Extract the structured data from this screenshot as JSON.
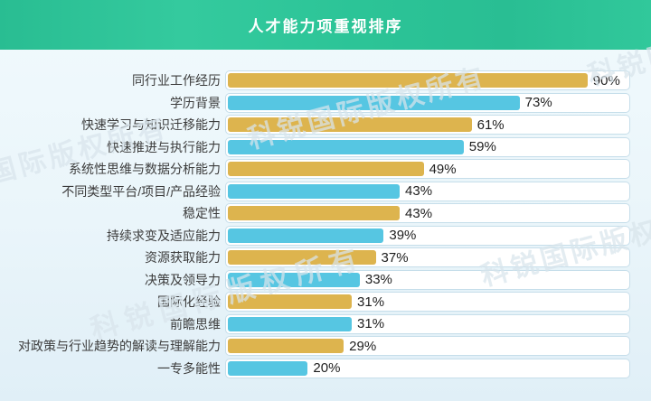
{
  "header": {
    "title": "人才能力项重视排序",
    "background_color": "#2BC59A",
    "title_color": "#FFFFFF"
  },
  "watermark": {
    "text": "科锐国际版权所有"
  },
  "chart_data": {
    "type": "bar",
    "orientation": "horizontal",
    "title": "人才能力项重视排序",
    "xlabel": "",
    "ylabel": "",
    "xlim": [
      0,
      100
    ],
    "grid": false,
    "legend": false,
    "value_suffix": "%",
    "categories": [
      "同行业工作经历",
      "学历背景",
      "快速学习与知识迁移能力",
      "快速推进与执行能力",
      "系统性思维与数据分析能力",
      "不同类型平台/项目/产品经验",
      "稳定性",
      "持续求变及适应能力",
      "资源获取能力",
      "决策及领导力",
      "国际化经验",
      "前瞻思维",
      "对政策与行业趋势的解读与理解能力",
      "一专多能性"
    ],
    "values": [
      90,
      73,
      61,
      59,
      49,
      43,
      43,
      39,
      37,
      33,
      31,
      31,
      29,
      20
    ],
    "bar_colors": [
      "gold",
      "blue",
      "gold",
      "blue",
      "gold",
      "blue",
      "gold",
      "blue",
      "gold",
      "blue",
      "gold",
      "blue",
      "gold",
      "blue"
    ],
    "palette": {
      "gold": "#DDB44E",
      "blue": "#56C6E2"
    },
    "track_background": "#FFFFFF",
    "track_border_color": "#C6DEEA"
  }
}
